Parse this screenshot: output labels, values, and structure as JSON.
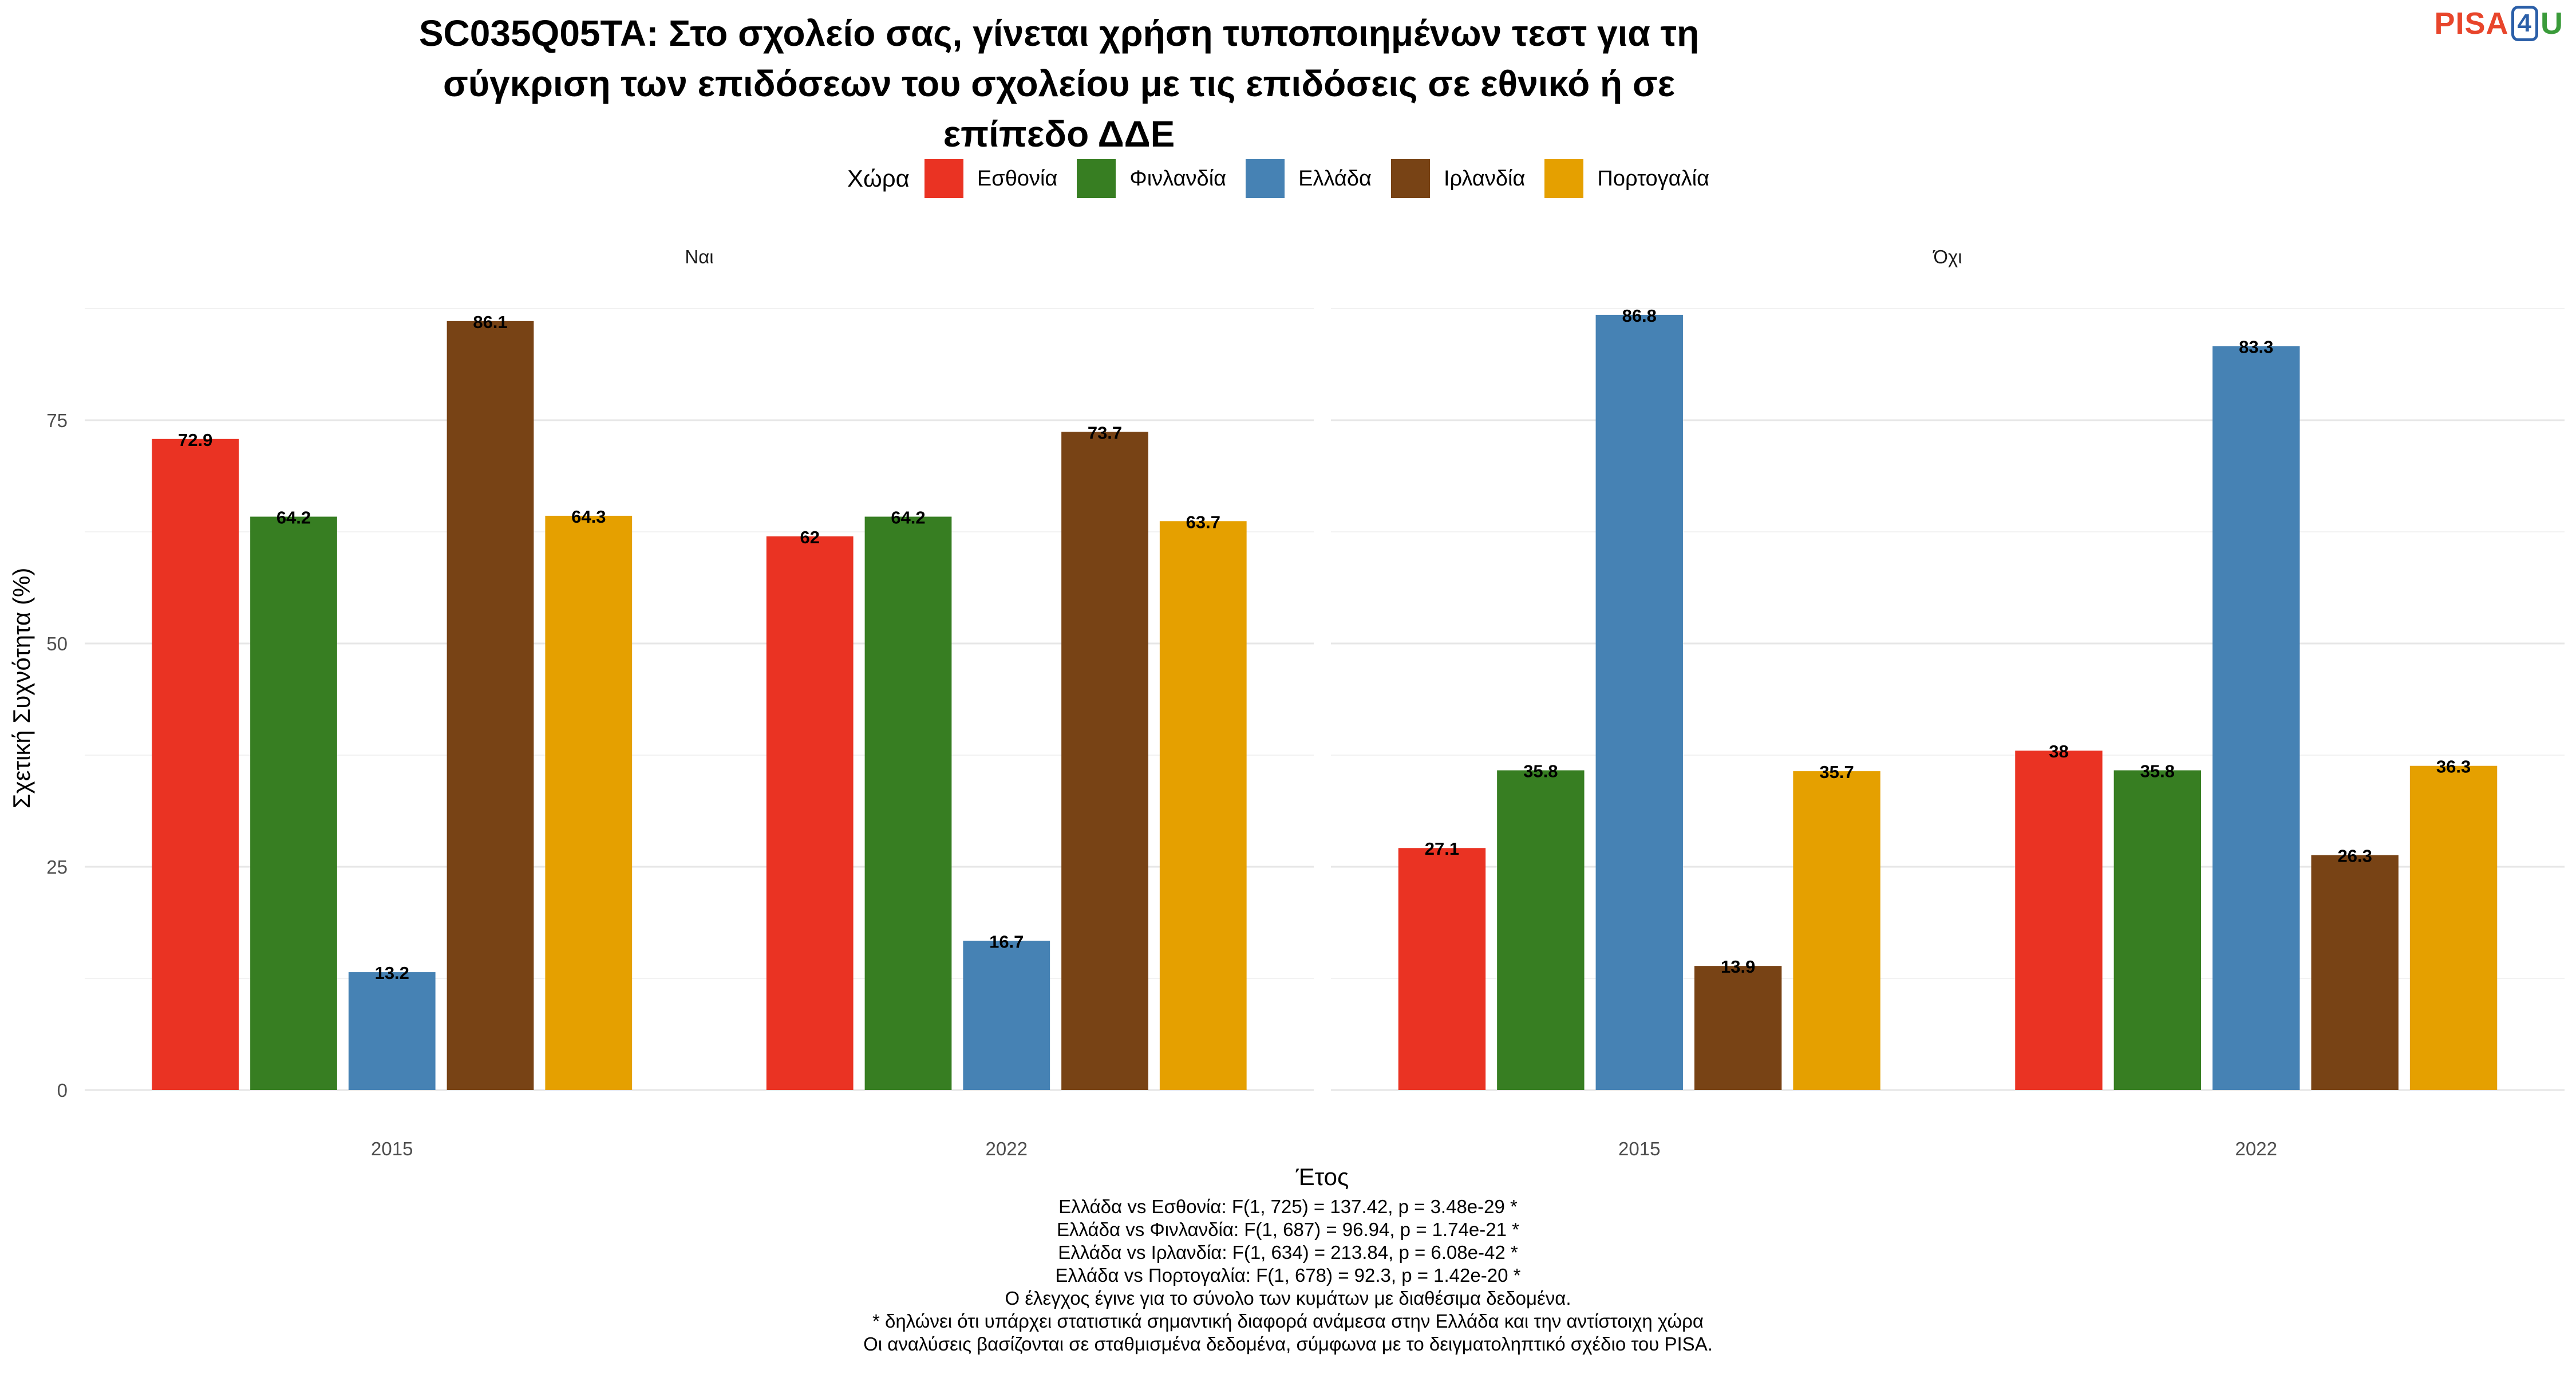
{
  "title_lines": [
    "SC035Q05TA: Στο σχολείο σας, γίνεται χρήση τυποποιημένων τεστ για τη",
    "σύγκριση των επιδόσεων του σχολείου με τις επιδόσεις σε εθνικό ή σε",
    "επίπεδο ΔΔΕ"
  ],
  "logo": {
    "left": "PISA",
    "middle": "4",
    "right": "U"
  },
  "footnotes": [
    "Ελλάδα vs Εσθονία: F(1, 725) = 137.42, p = 3.48e-29 *",
    "Ελλάδα vs Φινλανδία: F(1, 687) = 96.94, p = 1.74e-21 *",
    "Ελλάδα vs Ιρλανδία: F(1, 634) = 213.84, p = 6.08e-42 *",
    "Ελλάδα vs Πορτογαλία: F(1, 678) = 92.3, p = 1.42e-20 *",
    "Ο έλεγχος έγινε για το σύνολο των κυμάτων με διαθέσιμα δεδομένα.",
    "* δηλώνει ότι υπάρχει στατιστικά σημαντική διαφορά ανάμεσα στην Ελλάδα και την αντίστοιχη χώρα",
    "Οι αναλύσεις βασίζονται σε σταθμισμένα δεδομένα, σύμφωνα με το δειγματοληπτικό σχέδιο του PISA."
  ],
  "chart_data": {
    "type": "bar",
    "title": "SC035Q05TA: Στο σχολείο σας, γίνεται χρήση τυποποιημένων τεστ για τη σύγκριση των επιδόσεων του σχολείου με τις επιδόσεις σε εθνικό ή σε επίπεδο ΔΔΕ",
    "xlabel": "Έτος",
    "ylabel": "Σχετική Συχνότητα (%)",
    "legend_title": "Χώρα",
    "legend_position": "top",
    "grid": true,
    "ylim": [
      0,
      90
    ],
    "yticks": [
      0,
      25,
      50,
      75
    ],
    "categories": [
      "2015",
      "2022"
    ],
    "series": [
      {
        "name": "Εσθονία",
        "color": "#ea3323"
      },
      {
        "name": "Φινλανδία",
        "color": "#377e22"
      },
      {
        "name": "Ελλάδα",
        "color": "#4682b4"
      },
      {
        "name": "Ιρλανδία",
        "color": "#784315"
      },
      {
        "name": "Πορτογαλία",
        "color": "#e5a000"
      }
    ],
    "panels": [
      {
        "label": "Ναι",
        "values": [
          [
            72.9,
            64.2,
            13.2,
            86.1,
            64.3
          ],
          [
            62,
            64.2,
            16.7,
            73.7,
            63.7
          ]
        ]
      },
      {
        "label": "Όχι",
        "values": [
          [
            27.1,
            35.8,
            86.8,
            13.9,
            35.7
          ],
          [
            38,
            35.8,
            83.3,
            26.3,
            36.3
          ]
        ]
      }
    ]
  }
}
